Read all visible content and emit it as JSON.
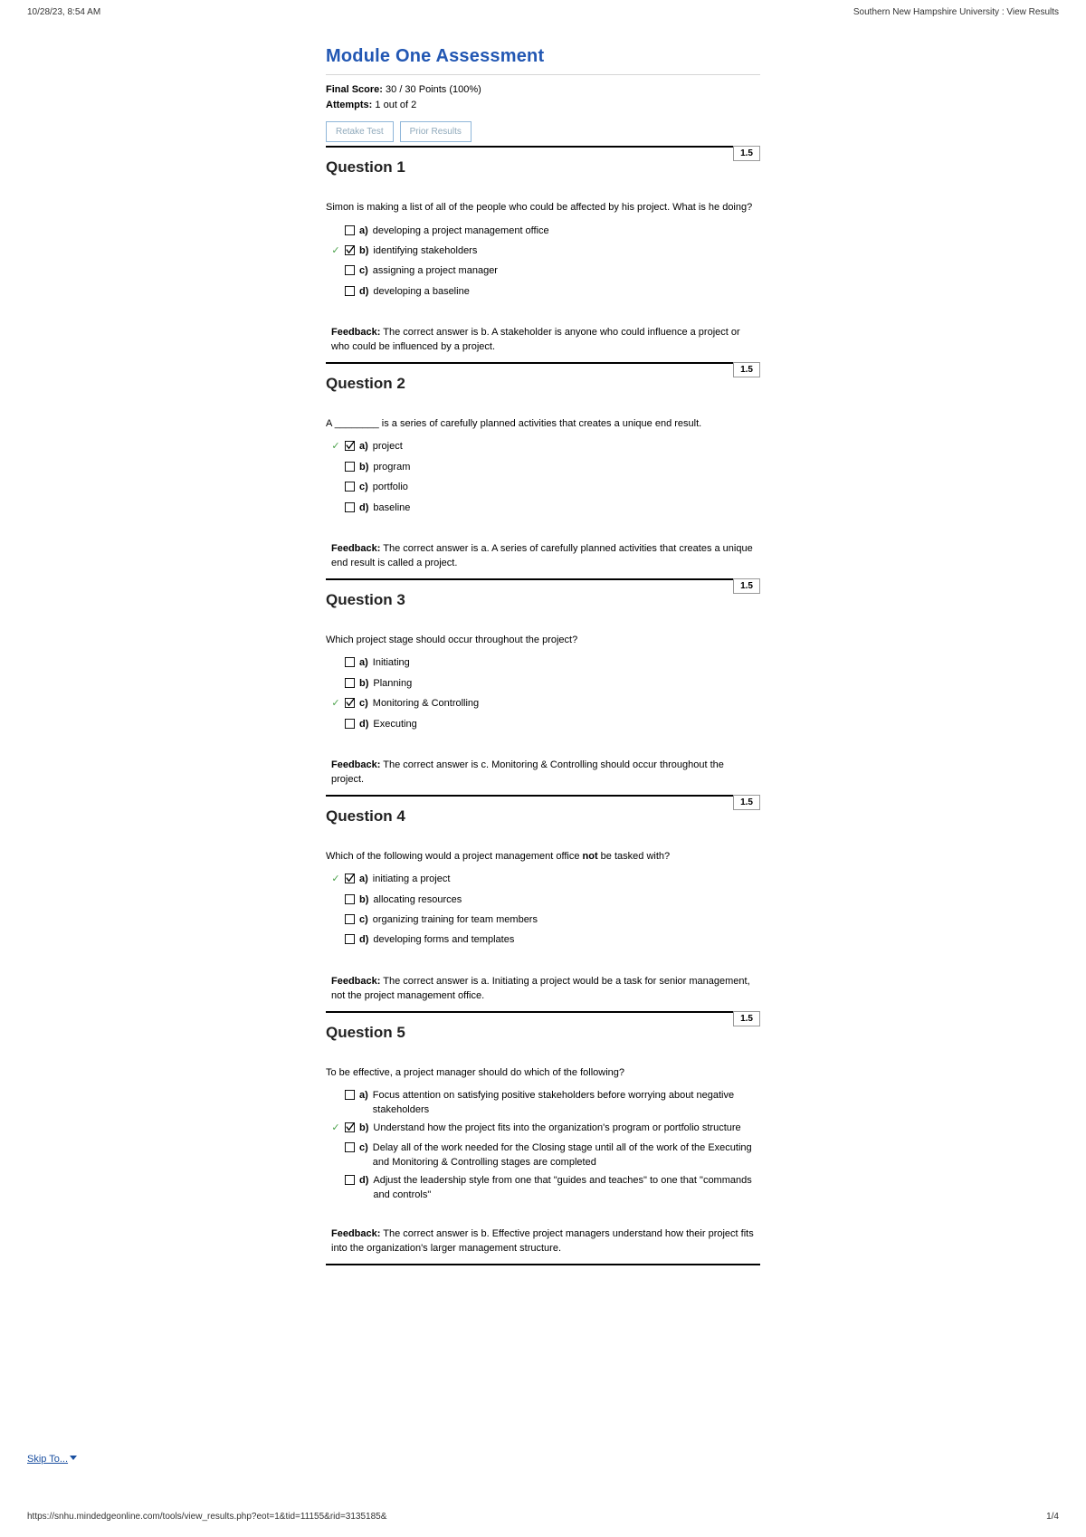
{
  "header": {
    "timestamp": "10/28/23, 8:54 AM",
    "site_title": "Southern New Hampshire University : View Results"
  },
  "assessment": {
    "title": "Module One Assessment",
    "final_score_label": "Final Score:",
    "final_score_value": "30 / 30 Points (100%)",
    "attempts_label": "Attempts:",
    "attempts_value": "1 out of 2",
    "retake_btn": "Retake Test",
    "prior_btn": "Prior Results"
  },
  "questions": [
    {
      "heading": "Question 1",
      "points": "1.5",
      "prompt_pre": "Simon is making a list of all of the people who could be affected by his project. What is he doing?",
      "prompt_bold": "",
      "prompt_post": "",
      "options": [
        {
          "letter": "a)",
          "text": "developing a project management office",
          "checked": false,
          "correct": false
        },
        {
          "letter": "b)",
          "text": "identifying stakeholders",
          "checked": true,
          "correct": true
        },
        {
          "letter": "c)",
          "text": "assigning a project manager",
          "checked": false,
          "correct": false
        },
        {
          "letter": "d)",
          "text": "developing a baseline",
          "checked": false,
          "correct": false
        }
      ],
      "feedback_label": "Feedback:",
      "feedback": "The correct answer is b. A stakeholder is anyone who could influence a project or who could be influenced by a project."
    },
    {
      "heading": "Question 2",
      "points": "1.5",
      "prompt_pre": "A ________ is a series of carefully planned activities that creates a unique end result.",
      "prompt_bold": "",
      "prompt_post": "",
      "options": [
        {
          "letter": "a)",
          "text": "project",
          "checked": true,
          "correct": true
        },
        {
          "letter": "b)",
          "text": "program",
          "checked": false,
          "correct": false
        },
        {
          "letter": "c)",
          "text": "portfolio",
          "checked": false,
          "correct": false
        },
        {
          "letter": "d)",
          "text": "baseline",
          "checked": false,
          "correct": false
        }
      ],
      "feedback_label": "Feedback:",
      "feedback": "The correct answer is a. A series of carefully planned activities that creates a unique end result is called a project."
    },
    {
      "heading": "Question 3",
      "points": "1.5",
      "prompt_pre": "Which project stage should occur throughout the project?",
      "prompt_bold": "",
      "prompt_post": "",
      "options": [
        {
          "letter": "a)",
          "text": "Initiating",
          "checked": false,
          "correct": false
        },
        {
          "letter": "b)",
          "text": "Planning",
          "checked": false,
          "correct": false
        },
        {
          "letter": "c)",
          "text": "Monitoring & Controlling",
          "checked": true,
          "correct": true
        },
        {
          "letter": "d)",
          "text": "Executing",
          "checked": false,
          "correct": false
        }
      ],
      "feedback_label": "Feedback:",
      "feedback": "The correct answer is c. Monitoring & Controlling should occur throughout the project."
    },
    {
      "heading": "Question 4",
      "points": "1.5",
      "prompt_pre": "Which of the following would a project management office ",
      "prompt_bold": "not",
      "prompt_post": " be tasked with?",
      "options": [
        {
          "letter": "a)",
          "text": "initiating a project",
          "checked": true,
          "correct": true
        },
        {
          "letter": "b)",
          "text": "allocating resources",
          "checked": false,
          "correct": false
        },
        {
          "letter": "c)",
          "text": "organizing training for team members",
          "checked": false,
          "correct": false
        },
        {
          "letter": "d)",
          "text": "developing forms and templates",
          "checked": false,
          "correct": false
        }
      ],
      "feedback_label": "Feedback:",
      "feedback": "The correct answer is a. Initiating a project would be a task for senior management, not the project management office."
    },
    {
      "heading": "Question 5",
      "points": "1.5",
      "prompt_pre": "To be effective, a project manager should do which of the following?",
      "prompt_bold": "",
      "prompt_post": "",
      "options": [
        {
          "letter": "a)",
          "text": "Focus attention on satisfying positive stakeholders before worrying about negative stakeholders",
          "checked": false,
          "correct": false
        },
        {
          "letter": "b)",
          "text": "Understand how the project fits into the organization's program or portfolio structure",
          "checked": true,
          "correct": true
        },
        {
          "letter": "c)",
          "text": "Delay all of the work needed for the Closing stage until all of the work of the Executing and Monitoring & Controlling stages are completed",
          "checked": false,
          "correct": false
        },
        {
          "letter": "d)",
          "text": "Adjust the leadership style from one that \"guides and teaches\" to one that \"commands and controls\"",
          "checked": false,
          "correct": false
        }
      ],
      "feedback_label": "Feedback:",
      "feedback": "The correct answer is b. Effective project managers understand how their project fits into the organization's larger management structure."
    }
  ],
  "skipto": "Skip To...",
  "footer": {
    "url": "https://snhu.mindedgeonline.com/tools/view_results.php?eot=1&tid=11155&rid=3135185&",
    "page": "1/4"
  }
}
